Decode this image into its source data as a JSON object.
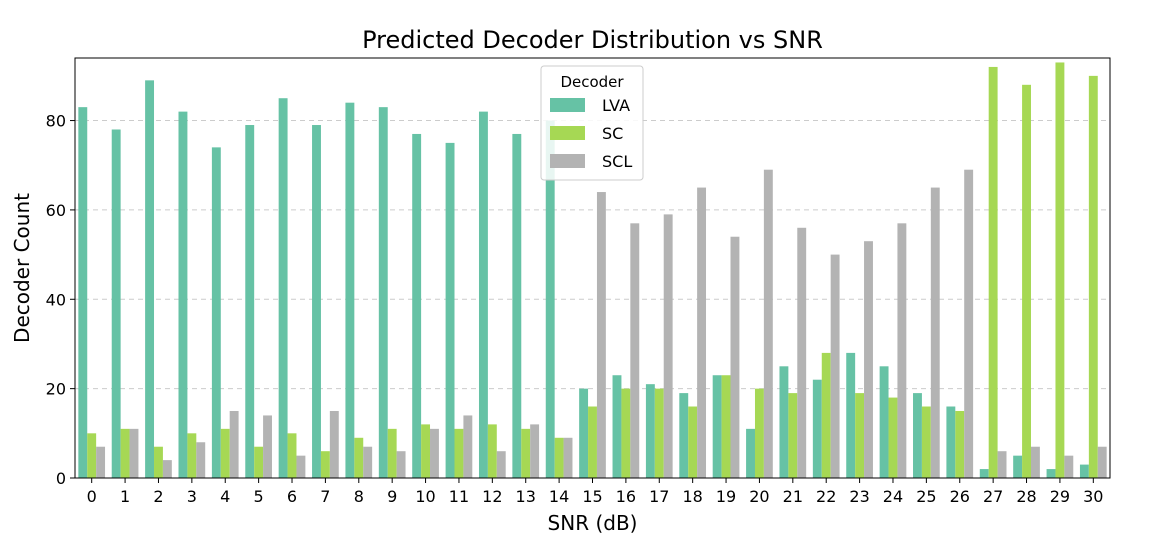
{
  "chart_data": {
    "type": "bar",
    "title": "Predicted Decoder Distribution vs SNR",
    "xlabel": "SNR (dB)",
    "ylabel": "Decoder Count",
    "categories": [
      "0",
      "1",
      "2",
      "3",
      "4",
      "5",
      "6",
      "7",
      "8",
      "9",
      "10",
      "11",
      "12",
      "13",
      "14",
      "15",
      "16",
      "17",
      "18",
      "19",
      "20",
      "21",
      "22",
      "23",
      "24",
      "25",
      "26",
      "27",
      "28",
      "29",
      "30"
    ],
    "ylim": [
      0,
      94
    ],
    "yticks": [
      0,
      20,
      40,
      60,
      80
    ],
    "grid": "y-dashed",
    "legend": {
      "title": "Decoder",
      "placement": "top-center"
    },
    "series": [
      {
        "name": "LVA",
        "color": "#66c2a5",
        "values": [
          83,
          78,
          89,
          82,
          74,
          79,
          85,
          79,
          84,
          83,
          77,
          75,
          82,
          77,
          80,
          20,
          23,
          21,
          19,
          23,
          11,
          25,
          22,
          28,
          25,
          19,
          16,
          2,
          5,
          2,
          3
        ]
      },
      {
        "name": "SC",
        "color": "#a6d854",
        "values": [
          10,
          11,
          7,
          10,
          11,
          7,
          10,
          6,
          9,
          11,
          12,
          11,
          12,
          11,
          9,
          16,
          20,
          20,
          16,
          23,
          20,
          19,
          28,
          19,
          18,
          16,
          15,
          92,
          88,
          93,
          90
        ]
      },
      {
        "name": "SCL",
        "color": "#b3b3b3",
        "values": [
          7,
          11,
          4,
          8,
          15,
          14,
          5,
          15,
          7,
          6,
          11,
          14,
          6,
          12,
          9,
          64,
          57,
          59,
          65,
          54,
          69,
          56,
          50,
          53,
          57,
          65,
          69,
          6,
          7,
          5,
          7
        ]
      }
    ]
  }
}
